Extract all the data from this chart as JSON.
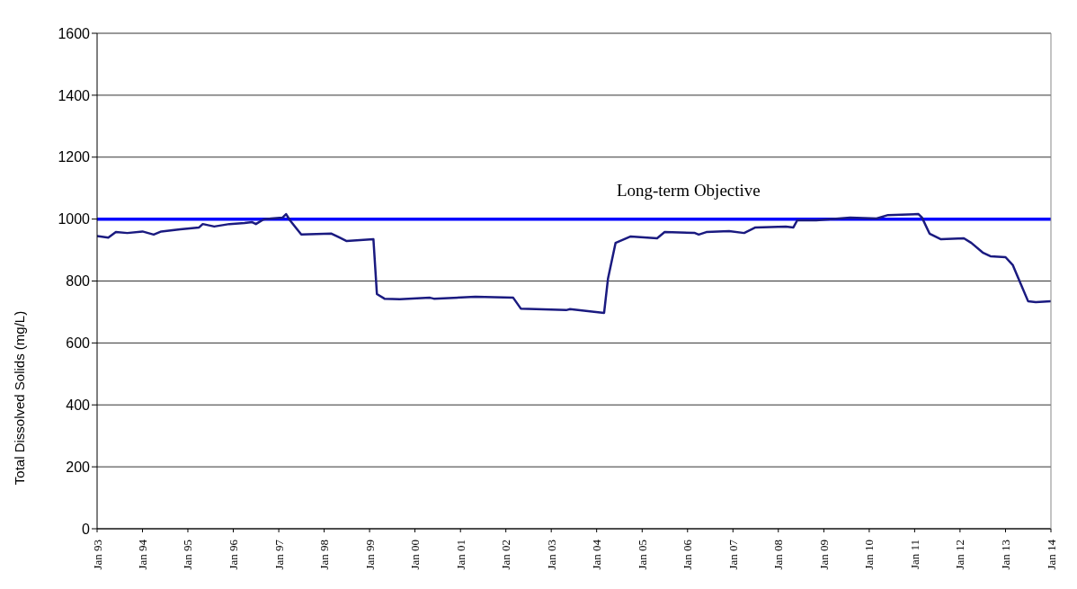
{
  "chart_data": {
    "type": "line",
    "ylabel": "Total Dissolved Solids (mg/L)",
    "x": [
      "1993-01",
      "1993-04",
      "1993-06",
      "1993-09",
      "1994-01",
      "1994-04",
      "1994-06",
      "1994-11",
      "1995-04",
      "1995-05",
      "1995-08",
      "1995-12",
      "1996-04",
      "1996-06",
      "1996-07",
      "1996-09",
      "1996-11",
      "1997-02",
      "1997-03",
      "1997-04",
      "1997-07",
      "1998-03",
      "1998-05",
      "1998-07",
      "1999-02",
      "1999-03",
      "1999-05",
      "1999-09",
      "2000-05",
      "2000-06",
      "2001-05",
      "2002-03",
      "2002-05",
      "2003-05",
      "2003-06",
      "2004-03",
      "2004-04",
      "2004-06",
      "2004-10",
      "2005-05",
      "2005-07",
      "2006-03",
      "2006-04",
      "2006-06",
      "2006-12",
      "2007-04",
      "2007-07",
      "2008-03",
      "2008-05",
      "2008-06",
      "2008-11",
      "2009-08",
      "2010-03",
      "2010-06",
      "2011-02",
      "2011-03",
      "2011-05",
      "2011-08",
      "2012-02",
      "2012-04",
      "2012-07",
      "2012-09",
      "2013-01",
      "2013-03",
      "2013-05",
      "2013-07",
      "2013-09",
      "2014-01"
    ],
    "series": [
      {
        "color": "#1a1a80",
        "values": [
          945,
          940,
          958,
          955,
          960,
          950,
          960,
          967,
          973,
          984,
          976,
          984,
          987,
          990,
          984,
          999,
          1002,
          1005,
          1016,
          996,
          950,
          953,
          941,
          929,
          935,
          758,
          743,
          741,
          746,
          743,
          749,
          746,
          711,
          706,
          709,
          697,
          807,
          923,
          944,
          938,
          958,
          955,
          950,
          958,
          961,
          955,
          973,
          976,
          973,
          996,
          996,
          1005,
          1002,
          1013,
          1016,
          1005,
          953,
          935,
          938,
          923,
          892,
          880,
          877,
          851,
          793,
          735,
          732,
          735
        ]
      }
    ],
    "xlim": [
      "1993-01",
      "2014-01"
    ],
    "xticks": [
      {
        "value": "1993-01",
        "label": "Jan 93"
      },
      {
        "value": "1994-01",
        "label": "Jan 94"
      },
      {
        "value": "1995-01",
        "label": "Jan 95"
      },
      {
        "value": "1996-01",
        "label": "Jan 96"
      },
      {
        "value": "1997-01",
        "label": "Jan 97"
      },
      {
        "value": "1998-01",
        "label": "Jan 98"
      },
      {
        "value": "1999-01",
        "label": "Jan 99"
      },
      {
        "value": "2000-01",
        "label": "Jan 00"
      },
      {
        "value": "2001-01",
        "label": "Jan 01"
      },
      {
        "value": "2002-01",
        "label": "Jan 02"
      },
      {
        "value": "2003-01",
        "label": "Jan 03"
      },
      {
        "value": "2004-01",
        "label": "Jan 04"
      },
      {
        "value": "2005-01",
        "label": "Jan 05"
      },
      {
        "value": "2006-01",
        "label": "Jan 06"
      },
      {
        "value": "2007-01",
        "label": "Jan 07"
      },
      {
        "value": "2008-01",
        "label": "Jan 08"
      },
      {
        "value": "2009-01",
        "label": "Jan 09"
      },
      {
        "value": "2010-01",
        "label": "Jan 10"
      },
      {
        "value": "2011-01",
        "label": "Jan 11"
      },
      {
        "value": "2012-01",
        "label": "Jan 12"
      },
      {
        "value": "2013-01",
        "label": "Jan 13"
      },
      {
        "value": "2014-01",
        "label": "Jan 14"
      }
    ],
    "ylim": [
      0,
      1600
    ],
    "yticks": [
      0,
      200,
      400,
      600,
      800,
      1000,
      1200,
      1400,
      1600
    ],
    "ref_lines": [
      {
        "axis": "y",
        "value": 1000,
        "label": "Long-term Objective",
        "color": "#0000ff"
      }
    ],
    "grid": "y",
    "legend": false,
    "marker": "none",
    "line_style": "solid"
  }
}
